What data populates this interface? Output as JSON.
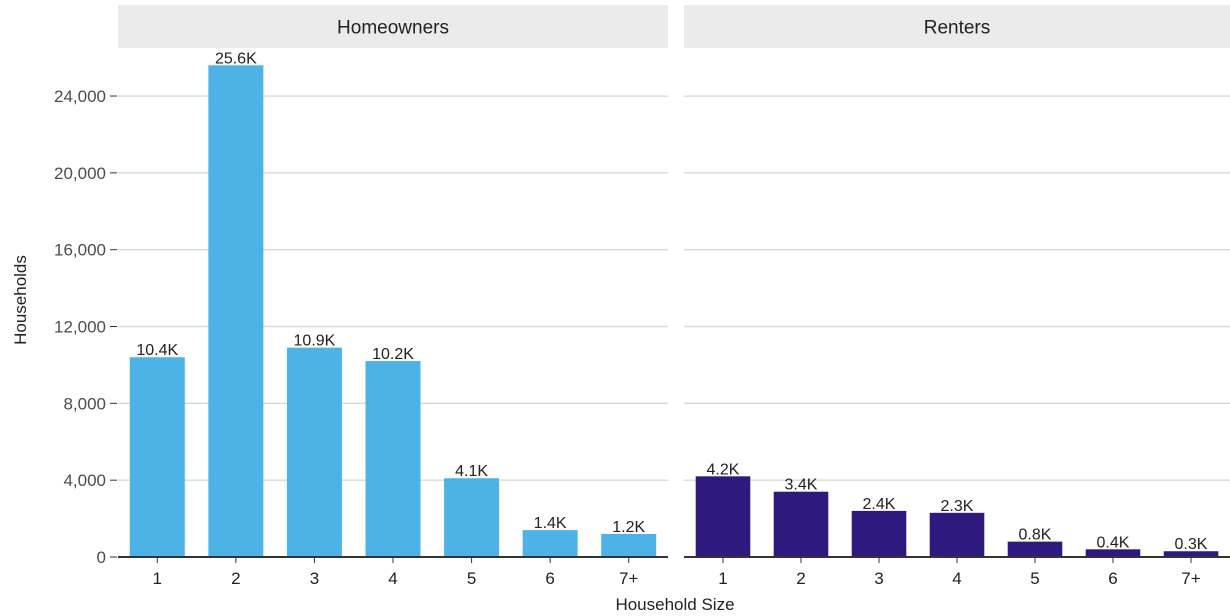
{
  "chart_data": {
    "type": "bar",
    "xlabel": "Household Size",
    "ylabel": "Households",
    "ylim": [
      0,
      26500
    ],
    "y_ticks": [
      0,
      4000,
      8000,
      12000,
      16000,
      20000,
      24000
    ],
    "y_tick_labels": [
      "0",
      "4,000",
      "8,000",
      "12,000",
      "16,000",
      "20,000",
      "24,000"
    ],
    "grid": true,
    "legend": "none",
    "categories": [
      "1",
      "2",
      "3",
      "4",
      "5",
      "6",
      "7+"
    ],
    "panels": [
      {
        "name": "Homeowners",
        "color": "#4db3e6",
        "values": [
          10400,
          25600,
          10900,
          10200,
          4100,
          1400,
          1200
        ],
        "labels": [
          "10.4K",
          "25.6K",
          "10.9K",
          "10.2K",
          "4.1K",
          "1.4K",
          "1.2K"
        ]
      },
      {
        "name": "Renters",
        "color": "#2e1a7f",
        "values": [
          4200,
          3400,
          2400,
          2300,
          800,
          400,
          300
        ],
        "labels": [
          "4.2K",
          "3.4K",
          "2.4K",
          "2.3K",
          "0.8K",
          "0.4K",
          "0.3K"
        ]
      }
    ]
  }
}
